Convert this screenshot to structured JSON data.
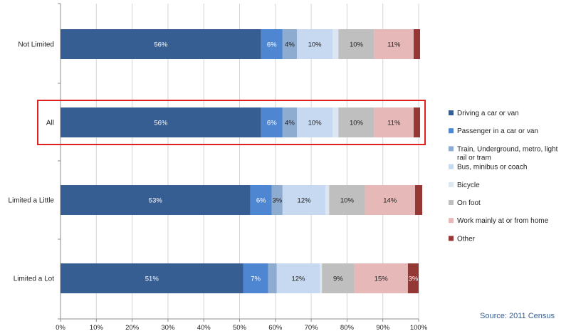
{
  "chart_data": {
    "type": "bar",
    "orientation": "horizontal",
    "stacked": true,
    "categories": [
      "Not Limited",
      "All",
      "Limited a Little",
      "Limited a Lot"
    ],
    "series": [
      {
        "name": "Driving a car or van",
        "color": "#375e92",
        "values": [
          56,
          56,
          53,
          51
        ],
        "labels": [
          "56%",
          "56%",
          "53%",
          "51%"
        ]
      },
      {
        "name": "Passenger in a car or van",
        "color": "#4f86d1",
        "values": [
          6,
          6,
          6,
          7
        ],
        "labels": [
          "6%",
          "6%",
          "6%",
          "7%"
        ]
      },
      {
        "name": "Train, Underground, metro, light rail or tram",
        "color": "#8eabd0",
        "values": [
          4,
          4,
          3,
          2.4
        ],
        "labels": [
          "4%",
          "4%",
          "3%",
          ""
        ]
      },
      {
        "name": "Bus, minibus or coach",
        "color": "#c6d9f0",
        "values": [
          10,
          10,
          12,
          12
        ],
        "labels": [
          "10%",
          "10%",
          "12%",
          "12%"
        ]
      },
      {
        "name": "Bicycle",
        "color": "#dce6f2",
        "values": [
          1.6,
          1.6,
          1,
          0.6
        ],
        "labels": [
          "",
          "",
          "",
          ""
        ]
      },
      {
        "name": "On foot",
        "color": "#bfbfbf",
        "values": [
          10,
          10,
          10,
          9
        ],
        "labels": [
          "10%",
          "10%",
          "10%",
          "9%"
        ]
      },
      {
        "name": "Work mainly at or from home",
        "color": "#e6b9b8",
        "values": [
          11,
          11,
          14,
          15
        ],
        "labels": [
          "11%",
          "11%",
          "14%",
          "15%"
        ]
      },
      {
        "name": "Other",
        "color": "#953735",
        "values": [
          1.8,
          1.8,
          2,
          3
        ],
        "labels": [
          "",
          "",
          "",
          "3%"
        ]
      }
    ],
    "xlim": [
      0,
      100
    ],
    "x_ticks": [
      "0%",
      "10%",
      "20%",
      "30%",
      "40%",
      "50%",
      "60%",
      "70%",
      "80%",
      "90%",
      "100%"
    ],
    "grid": true,
    "legend_position": "right",
    "highlighted_category": "All",
    "highlight_color": "#e01f1f"
  },
  "source_note": "Source: 2011 Census"
}
